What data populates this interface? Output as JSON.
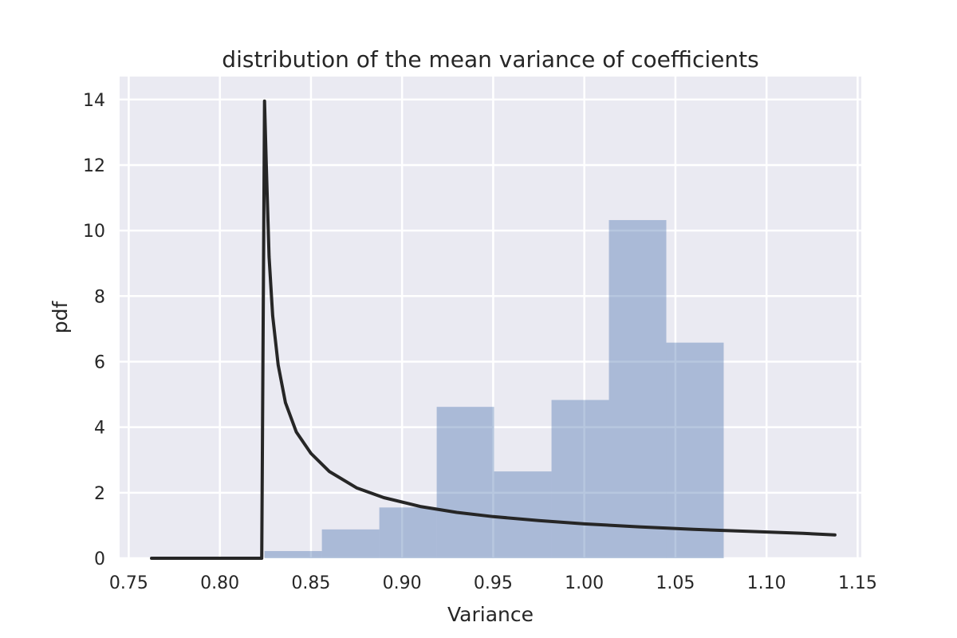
{
  "chart_data": {
    "type": "bar",
    "title": "distribution of the mean variance of coefficients",
    "xlabel": "Variance",
    "ylabel": "pdf",
    "xlim": [
      0.745,
      1.152
    ],
    "ylim": [
      0,
      14.7
    ],
    "xticks": [
      0.75,
      0.8,
      0.85,
      0.9,
      0.95,
      1.0,
      1.05,
      1.1,
      1.15
    ],
    "xtick_labels": [
      "0.75",
      "0.80",
      "0.85",
      "0.90",
      "0.95",
      "1.00",
      "1.05",
      "1.10",
      "1.15"
    ],
    "yticks": [
      0,
      2,
      4,
      6,
      8,
      10,
      12,
      14
    ],
    "ytick_labels": [
      "0",
      "2",
      "4",
      "6",
      "8",
      "10",
      "12",
      "14"
    ],
    "grid": true,
    "colors": {
      "background": "#eaeaf2",
      "grid": "#ffffff",
      "bars": "#4c72b0",
      "curve": "#262626",
      "text": "#262626"
    },
    "histogram": {
      "bin_edges": [
        0.8245,
        0.856,
        0.8875,
        0.919,
        0.9505,
        0.982,
        1.0135,
        1.045,
        1.0765
      ],
      "values": [
        0.22,
        0.88,
        1.55,
        4.62,
        2.65,
        4.83,
        10.32,
        6.58
      ]
    },
    "curve": {
      "x": [
        0.7625,
        0.8,
        0.823,
        0.8245,
        0.8255,
        0.827,
        0.829,
        0.832,
        0.836,
        0.842,
        0.85,
        0.86,
        0.875,
        0.89,
        0.91,
        0.93,
        0.95,
        0.975,
        1.0,
        1.03,
        1.06,
        1.09,
        1.12,
        1.1375
      ],
      "y": [
        0.0,
        0.0,
        0.0,
        13.95,
        12.0,
        9.2,
        7.4,
        5.9,
        4.75,
        3.85,
        3.2,
        2.65,
        2.15,
        1.85,
        1.58,
        1.4,
        1.27,
        1.15,
        1.05,
        0.96,
        0.88,
        0.82,
        0.76,
        0.71
      ]
    }
  }
}
